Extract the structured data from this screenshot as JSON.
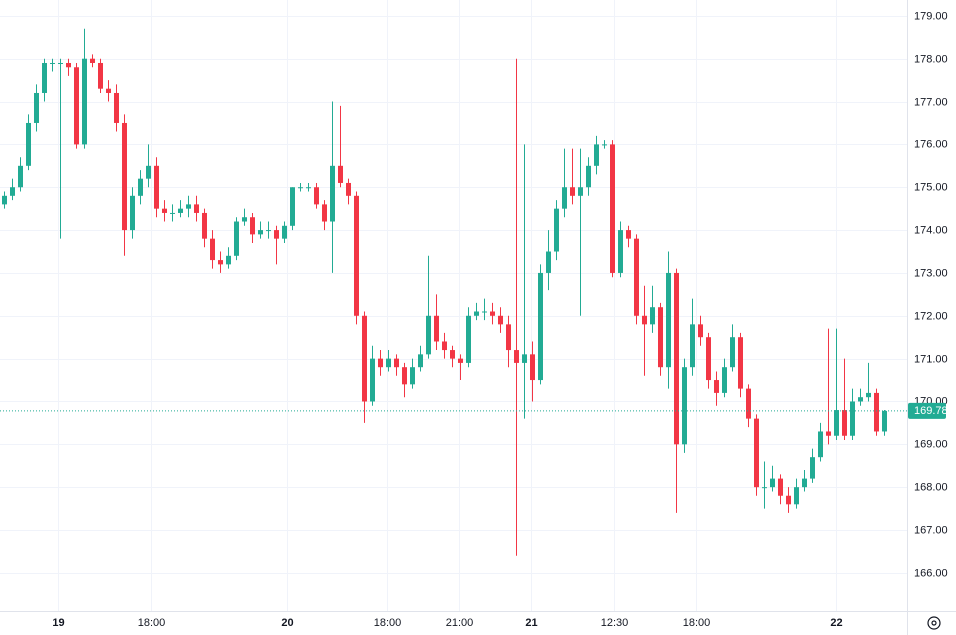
{
  "chart_data": {
    "type": "candlestick",
    "up_color": "#22ab94",
    "down_color": "#f23645",
    "grid": true,
    "xlim": [
      0,
      113.4
    ],
    "ylim": [
      165.11,
      179.37
    ],
    "xticks": [
      {
        "value": 7.25,
        "label": "19"
      },
      {
        "value": 18.9,
        "label": "18:00"
      },
      {
        "value": 35.9,
        "label": "20"
      },
      {
        "value": 48.4,
        "label": "18:00"
      },
      {
        "value": 57.4,
        "label": "21:00"
      },
      {
        "value": 66.4,
        "label": "21"
      },
      {
        "value": 76.75,
        "label": "12:30"
      },
      {
        "value": 87,
        "label": "18:00"
      },
      {
        "value": 104.5,
        "label": "22"
      }
    ],
    "yticks": [
      {
        "value": 166,
        "label": "166.00"
      },
      {
        "value": 167,
        "label": "167.00"
      },
      {
        "value": 168,
        "label": "168.00"
      },
      {
        "value": 169,
        "label": "169.00"
      },
      {
        "value": 170,
        "label": "170.00"
      },
      {
        "value": 171,
        "label": "171.00"
      },
      {
        "value": 172,
        "label": "172.00"
      },
      {
        "value": 173,
        "label": "173.00"
      },
      {
        "value": 174,
        "label": "174.00"
      },
      {
        "value": 175,
        "label": "175.00"
      },
      {
        "value": 176,
        "label": "176.00"
      },
      {
        "value": 177,
        "label": "177.00"
      },
      {
        "value": 178,
        "label": "178.00"
      },
      {
        "value": 179,
        "label": "179.00"
      }
    ],
    "last_price": 169.78,
    "ohlc": [
      [
        174.6,
        174.9,
        174.5,
        174.8
      ],
      [
        174.8,
        175.2,
        174.7,
        175.0
      ],
      [
        175.0,
        175.7,
        174.9,
        175.5
      ],
      [
        175.5,
        176.7,
        175.4,
        176.5
      ],
      [
        176.5,
        177.4,
        176.3,
        177.2
      ],
      [
        177.2,
        178.0,
        177.0,
        177.9
      ],
      [
        177.9,
        178.0,
        177.7,
        177.9
      ],
      [
        177.9,
        178.0,
        173.8,
        177.9
      ],
      [
        177.9,
        178.0,
        177.6,
        177.8
      ],
      [
        177.8,
        177.9,
        175.9,
        176.0
      ],
      [
        176.0,
        178.7,
        175.9,
        178.0
      ],
      [
        178.0,
        178.1,
        177.8,
        177.9
      ],
      [
        177.9,
        178.0,
        177.2,
        177.3
      ],
      [
        177.3,
        177.5,
        177.0,
        177.2
      ],
      [
        177.2,
        177.4,
        176.3,
        176.5
      ],
      [
        176.5,
        176.7,
        173.4,
        174.0
      ],
      [
        174.0,
        175.0,
        173.8,
        174.8
      ],
      [
        174.8,
        175.4,
        174.6,
        175.2
      ],
      [
        175.2,
        176.0,
        175.0,
        175.5
      ],
      [
        175.5,
        175.7,
        174.3,
        174.5
      ],
      [
        174.5,
        174.7,
        174.2,
        174.4
      ],
      [
        174.4,
        174.6,
        174.2,
        174.4
      ],
      [
        174.4,
        174.7,
        174.3,
        174.5
      ],
      [
        174.5,
        174.8,
        174.3,
        174.6
      ],
      [
        174.6,
        174.8,
        174.2,
        174.4
      ],
      [
        174.4,
        174.5,
        173.6,
        173.8
      ],
      [
        173.8,
        174.0,
        173.1,
        173.3
      ],
      [
        173.3,
        173.5,
        173.0,
        173.2
      ],
      [
        173.2,
        173.6,
        173.1,
        173.4
      ],
      [
        173.4,
        174.3,
        173.3,
        174.2
      ],
      [
        174.2,
        174.5,
        174.1,
        174.3
      ],
      [
        174.3,
        174.4,
        173.7,
        173.9
      ],
      [
        173.9,
        174.2,
        173.8,
        174.0
      ],
      [
        174.0,
        174.2,
        173.8,
        174.0
      ],
      [
        174.0,
        174.1,
        173.2,
        173.8
      ],
      [
        173.8,
        174.2,
        173.7,
        174.1
      ],
      [
        174.1,
        175.0,
        174.0,
        175.0
      ],
      [
        175.0,
        175.1,
        174.9,
        175.0
      ],
      [
        175.0,
        175.1,
        174.9,
        175.0
      ],
      [
        175.0,
        175.1,
        174.5,
        174.6
      ],
      [
        174.6,
        174.7,
        174.0,
        174.2
      ],
      [
        174.2,
        177.0,
        173.0,
        175.5
      ],
      [
        175.5,
        176.9,
        175.0,
        175.1
      ],
      [
        175.1,
        175.2,
        174.6,
        174.8
      ],
      [
        174.8,
        174.9,
        171.8,
        172.0
      ],
      [
        172.0,
        172.1,
        169.5,
        170.0
      ],
      [
        170.0,
        171.3,
        169.9,
        171.0
      ],
      [
        171.0,
        171.2,
        170.6,
        170.8
      ],
      [
        170.8,
        171.2,
        170.7,
        171.0
      ],
      [
        171.0,
        171.1,
        170.6,
        170.8
      ],
      [
        170.8,
        170.9,
        170.1,
        170.4
      ],
      [
        170.4,
        171.0,
        170.3,
        170.8
      ],
      [
        170.8,
        171.3,
        170.7,
        171.1
      ],
      [
        171.1,
        173.4,
        171.0,
        172.0
      ],
      [
        172.0,
        172.5,
        171.2,
        171.4
      ],
      [
        171.4,
        171.6,
        171.0,
        171.2
      ],
      [
        171.2,
        171.3,
        170.8,
        171.0
      ],
      [
        171.0,
        171.1,
        170.5,
        170.9
      ],
      [
        170.9,
        172.2,
        170.8,
        172.0
      ],
      [
        172.0,
        172.3,
        171.9,
        172.1
      ],
      [
        172.1,
        172.4,
        171.9,
        172.1
      ],
      [
        172.1,
        172.3,
        171.8,
        172.0
      ],
      [
        172.0,
        172.2,
        171.6,
        171.8
      ],
      [
        171.8,
        172.0,
        170.8,
        171.2
      ],
      [
        171.2,
        178.0,
        166.4,
        170.9
      ],
      [
        170.9,
        176.0,
        169.6,
        171.1
      ],
      [
        171.1,
        171.4,
        170.0,
        170.5
      ],
      [
        170.5,
        173.2,
        170.4,
        173.0
      ],
      [
        173.0,
        174.0,
        172.6,
        173.5
      ],
      [
        173.5,
        174.7,
        173.3,
        174.5
      ],
      [
        174.5,
        175.9,
        174.3,
        175.0
      ],
      [
        175.0,
        175.9,
        174.6,
        174.8
      ],
      [
        174.8,
        175.9,
        172.0,
        175.0
      ],
      [
        175.0,
        175.7,
        174.8,
        175.5
      ],
      [
        175.5,
        176.2,
        175.3,
        176.0
      ],
      [
        176.0,
        176.1,
        175.9,
        176.0
      ],
      [
        176.0,
        176.1,
        172.9,
        173.0
      ],
      [
        173.0,
        174.2,
        172.9,
        174.0
      ],
      [
        174.0,
        174.1,
        173.6,
        173.8
      ],
      [
        173.8,
        173.9,
        171.8,
        172.0
      ],
      [
        172.0,
        172.7,
        170.6,
        171.8
      ],
      [
        171.8,
        172.7,
        171.6,
        172.2
      ],
      [
        172.2,
        172.3,
        170.6,
        170.8
      ],
      [
        170.8,
        173.5,
        170.3,
        173.0
      ],
      [
        173.0,
        173.1,
        167.4,
        169.0
      ],
      [
        169.0,
        171.0,
        168.8,
        170.8
      ],
      [
        170.8,
        172.4,
        170.6,
        171.8
      ],
      [
        171.8,
        172.0,
        171.3,
        171.5
      ],
      [
        171.5,
        171.6,
        170.3,
        170.5
      ],
      [
        170.5,
        170.7,
        169.9,
        170.2
      ],
      [
        170.2,
        171.0,
        170.1,
        170.8
      ],
      [
        170.8,
        171.8,
        170.7,
        171.5
      ],
      [
        171.5,
        171.6,
        170.1,
        170.3
      ],
      [
        170.3,
        170.4,
        169.4,
        169.6
      ],
      [
        169.6,
        169.7,
        167.8,
        168.0
      ],
      [
        168.0,
        168.6,
        167.5,
        168.0
      ],
      [
        168.0,
        168.5,
        167.9,
        168.2
      ],
      [
        168.2,
        168.3,
        167.6,
        167.8
      ],
      [
        167.8,
        168.0,
        167.4,
        167.6
      ],
      [
        167.6,
        168.2,
        167.5,
        168.0
      ],
      [
        168.0,
        168.4,
        167.9,
        168.2
      ],
      [
        168.2,
        168.9,
        168.1,
        168.7
      ],
      [
        168.7,
        169.5,
        168.6,
        169.3
      ],
      [
        169.3,
        171.7,
        169.0,
        169.2
      ],
      [
        169.2,
        171.7,
        169.1,
        169.8
      ],
      [
        169.8,
        171.0,
        169.1,
        169.2
      ],
      [
        169.2,
        170.3,
        169.1,
        170.0
      ],
      [
        170.0,
        170.3,
        169.9,
        170.1
      ],
      [
        170.1,
        170.9,
        170.0,
        170.2
      ],
      [
        170.2,
        170.3,
        169.2,
        169.3
      ],
      [
        169.3,
        169.8,
        169.2,
        169.78
      ]
    ]
  }
}
